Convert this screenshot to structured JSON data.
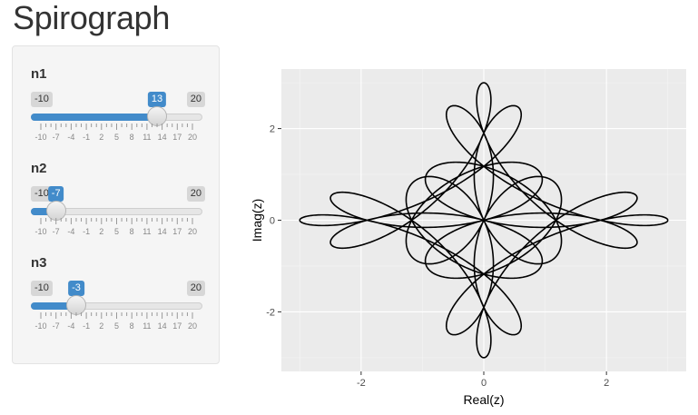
{
  "app": {
    "title": "Spirograph"
  },
  "sliders": [
    {
      "id": "n1",
      "label": "n1",
      "min": -10,
      "max": 20,
      "value": 13,
      "min_label": "-10",
      "max_label": "20",
      "value_label": "13"
    },
    {
      "id": "n2",
      "label": "n2",
      "min": -10,
      "max": 20,
      "value": -7,
      "min_label": "-10",
      "max_label": "20",
      "value_label": "-7"
    },
    {
      "id": "n3",
      "label": "n3",
      "min": -10,
      "max": 20,
      "value": -3,
      "min_label": "-10",
      "max_label": "20",
      "value_label": "-3"
    }
  ],
  "slider_tick_labels": [
    "-10",
    "-7",
    "-4",
    "-1",
    "2",
    "5",
    "8",
    "11",
    "14",
    "17",
    "20"
  ],
  "colors": {
    "slider_accent": "#428bca",
    "panel_background": "#f5f5f5",
    "plot_background": "#ebebeb",
    "curve": "#000000"
  },
  "chart_data": {
    "type": "line",
    "xlabel": "Real(z)",
    "ylabel": "Imag(z)",
    "xlim": [
      -3.3,
      3.3
    ],
    "ylim": [
      -3.3,
      3.3
    ],
    "x_ticks": [
      -2,
      0,
      2
    ],
    "y_ticks": [
      -2,
      0,
      2
    ],
    "x_tick_labels": [
      "-2",
      "0",
      "2"
    ],
    "y_tick_labels": [
      "-2",
      "0",
      "2"
    ],
    "grid": true,
    "curve": {
      "formula": "z(t) = e^(i n1 t) + e^(i n2 t) + e^(i n3 t)",
      "n1": 13,
      "n2": -7,
      "n3": -3,
      "t_range": [
        0,
        6.2832
      ]
    }
  }
}
